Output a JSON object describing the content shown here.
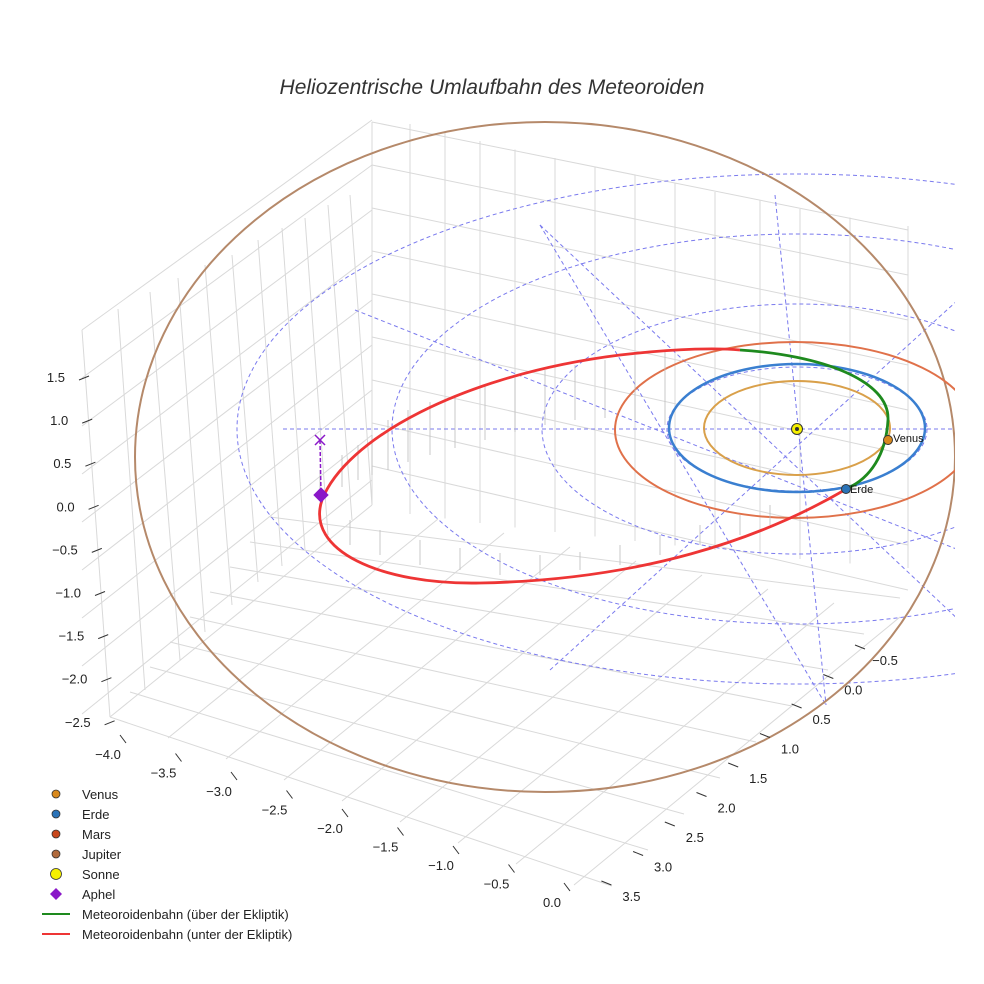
{
  "chart_data": {
    "type": "3d-line",
    "title": "Heliozentrische Umlaufbahn des Meteoroiden",
    "x_ticks": [
      "−4.0",
      "−3.5",
      "−3.0",
      "−2.5",
      "−2.0",
      "−1.5",
      "−1.0",
      "−0.5",
      "0.0"
    ],
    "y_ticks": [
      "−0.5",
      "0.0",
      "0.5",
      "1.0",
      "1.5",
      "2.0",
      "2.5",
      "3.0",
      "3.5"
    ],
    "z_ticks": [
      "1.5",
      "1.0",
      "0.5",
      "0.0",
      "−0.5",
      "−1.0",
      "−1.5",
      "−2.0",
      "−2.5"
    ],
    "xlim": [
      -4.0,
      0.0
    ],
    "ylim": [
      -0.5,
      3.5
    ],
    "zlim": [
      -2.5,
      1.5
    ],
    "planets": [
      {
        "name": "Venus",
        "semi_major_axis_au": 0.72,
        "color": "#d9a04a",
        "label": "Venus"
      },
      {
        "name": "Erde",
        "semi_major_axis_au": 1.0,
        "color": "#3a7fd0",
        "label": "Erde"
      },
      {
        "name": "Mars",
        "semi_major_axis_au": 1.52,
        "color": "#e0714a",
        "label": ""
      },
      {
        "name": "Jupiter",
        "semi_major_axis_au": 5.2,
        "color": "#b5896a",
        "label": ""
      }
    ],
    "sun": {
      "name": "Sonne",
      "color": "#f6f000"
    },
    "aphelion": {
      "name": "Aphel",
      "color": "#8a18c8"
    },
    "meteoroid": {
      "above_label": "Meteoroidenbahn (über der Ekliptik)",
      "below_label": "Meteoroidenbahn (unter der Ekliptik)",
      "above_color": "#1e8a1e",
      "below_color": "#ee3535"
    },
    "grid_color": "#7a7aee",
    "legend": [
      {
        "label": "Venus",
        "marker": "circle",
        "color": "#d9891c"
      },
      {
        "label": "Erde",
        "marker": "circle",
        "color": "#2a73b8"
      },
      {
        "label": "Mars",
        "marker": "circle",
        "color": "#c8471c"
      },
      {
        "label": "Jupiter",
        "marker": "circle",
        "color": "#b06a3c"
      },
      {
        "label": "Sonne",
        "marker": "circle-large",
        "color": "#f6f000"
      },
      {
        "label": "Aphel",
        "marker": "diamond",
        "color": "#8a18c8"
      },
      {
        "label": "Meteoroidenbahn (über der Ekliptik)",
        "marker": "line",
        "color": "#1e8a1e"
      },
      {
        "label": "Meteoroidenbahn (unter der Ekliptik)",
        "marker": "line",
        "color": "#ee3535"
      }
    ]
  }
}
